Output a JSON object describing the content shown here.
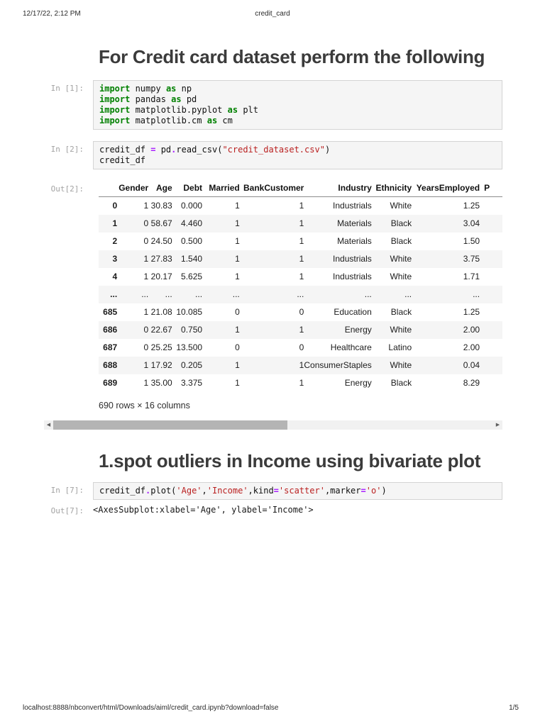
{
  "page": {
    "header": {
      "datetime": "12/17/22, 2:12 PM",
      "title": "credit_card"
    },
    "footer": {
      "url": "localhost:8888/nbconvert/html/Downloads/aiml/credit_card.ipynb?download=false",
      "page_indicator": "1/5"
    }
  },
  "sections": {
    "heading1": "For Credit card dataset perform the following",
    "heading2": "1.spot outliers in Income using bivariate plot"
  },
  "colors": {
    "keyword": "#008000",
    "string": "#BA2121",
    "operator": "#AA22FF",
    "prompt_text": "#A3A3A3",
    "code_cell_bg": "#F5F5F5",
    "table_stripe": "#F5F5F5"
  },
  "cells": {
    "cell1": {
      "prompt": "In [1]:",
      "code": [
        [
          {
            "c": "k",
            "t": "import"
          },
          {
            "t": " numpy "
          },
          {
            "c": "k",
            "t": "as"
          },
          {
            "t": " np"
          }
        ],
        [
          {
            "c": "k",
            "t": "import"
          },
          {
            "t": " pandas "
          },
          {
            "c": "k",
            "t": "as"
          },
          {
            "t": " pd"
          }
        ],
        [
          {
            "c": "k",
            "t": "import"
          },
          {
            "t": " matplotlib.pyplot "
          },
          {
            "c": "k",
            "t": "as"
          },
          {
            "t": " plt"
          }
        ],
        [
          {
            "c": "k",
            "t": "import"
          },
          {
            "t": " matplotlib.cm "
          },
          {
            "c": "k",
            "t": "as"
          },
          {
            "t": " cm"
          }
        ]
      ]
    },
    "cell2": {
      "prompt": "In [2]:",
      "code": [
        [
          {
            "t": "credit_df "
          },
          {
            "c": "o",
            "t": "="
          },
          {
            "t": " pd"
          },
          {
            "c": "o",
            "t": "."
          },
          {
            "t": "read_csv("
          },
          {
            "c": "s",
            "t": "\"credit_dataset.csv\""
          },
          {
            "t": ")"
          }
        ],
        [
          {
            "t": "credit_df"
          }
        ]
      ]
    },
    "out2_prompt": "Out[2]:",
    "cell7": {
      "prompt": "In [7]:",
      "code": [
        [
          {
            "t": "credit_df"
          },
          {
            "c": "o",
            "t": "."
          },
          {
            "t": "plot("
          },
          {
            "c": "s",
            "t": "'Age'"
          },
          {
            "t": ","
          },
          {
            "c": "s",
            "t": "'Income'"
          },
          {
            "t": ",kind"
          },
          {
            "c": "o",
            "t": "="
          },
          {
            "c": "s",
            "t": "'scatter'"
          },
          {
            "t": ",marker"
          },
          {
            "c": "o",
            "t": "="
          },
          {
            "c": "s",
            "t": "'o'"
          },
          {
            "t": ")"
          }
        ]
      ]
    },
    "out7": {
      "prompt": "Out[7]:",
      "text": "<AxesSubplot:xlabel='Age', ylabel='Income'>"
    }
  },
  "table": {
    "columns": [
      "Gender",
      "Age",
      "Debt",
      "Married",
      "BankCustomer",
      "Industry",
      "Ethnicity",
      "YearsEmployed"
    ],
    "clipped_column": "P",
    "rows": [
      {
        "index": "0",
        "cells": [
          "1",
          "30.83",
          "0.000",
          "1",
          "1",
          "Industrials",
          "White",
          "1.25"
        ]
      },
      {
        "index": "1",
        "cells": [
          "0",
          "58.67",
          "4.460",
          "1",
          "1",
          "Materials",
          "Black",
          "3.04"
        ]
      },
      {
        "index": "2",
        "cells": [
          "0",
          "24.50",
          "0.500",
          "1",
          "1",
          "Materials",
          "Black",
          "1.50"
        ]
      },
      {
        "index": "3",
        "cells": [
          "1",
          "27.83",
          "1.540",
          "1",
          "1",
          "Industrials",
          "White",
          "3.75"
        ]
      },
      {
        "index": "4",
        "cells": [
          "1",
          "20.17",
          "5.625",
          "1",
          "1",
          "Industrials",
          "White",
          "1.71"
        ]
      },
      {
        "index": "...",
        "cells": [
          "...",
          "...",
          "...",
          "...",
          "...",
          "...",
          "...",
          "..."
        ]
      },
      {
        "index": "685",
        "cells": [
          "1",
          "21.08",
          "10.085",
          "0",
          "0",
          "Education",
          "Black",
          "1.25"
        ]
      },
      {
        "index": "686",
        "cells": [
          "0",
          "22.67",
          "0.750",
          "1",
          "1",
          "Energy",
          "White",
          "2.00"
        ]
      },
      {
        "index": "687",
        "cells": [
          "0",
          "25.25",
          "13.500",
          "0",
          "0",
          "Healthcare",
          "Latino",
          "2.00"
        ]
      },
      {
        "index": "688",
        "cells": [
          "1",
          "17.92",
          "0.205",
          "1",
          "1",
          "ConsumerStaples",
          "White",
          "0.04"
        ]
      },
      {
        "index": "689",
        "cells": [
          "1",
          "35.00",
          "3.375",
          "1",
          "1",
          "Energy",
          "Black",
          "8.29"
        ]
      }
    ],
    "summary": "690 rows × 16 columns"
  },
  "scrollbar": {
    "left_arrow_icon": "scroll-left-arrow-icon",
    "right_arrow_icon": "scroll-right-arrow-icon"
  }
}
